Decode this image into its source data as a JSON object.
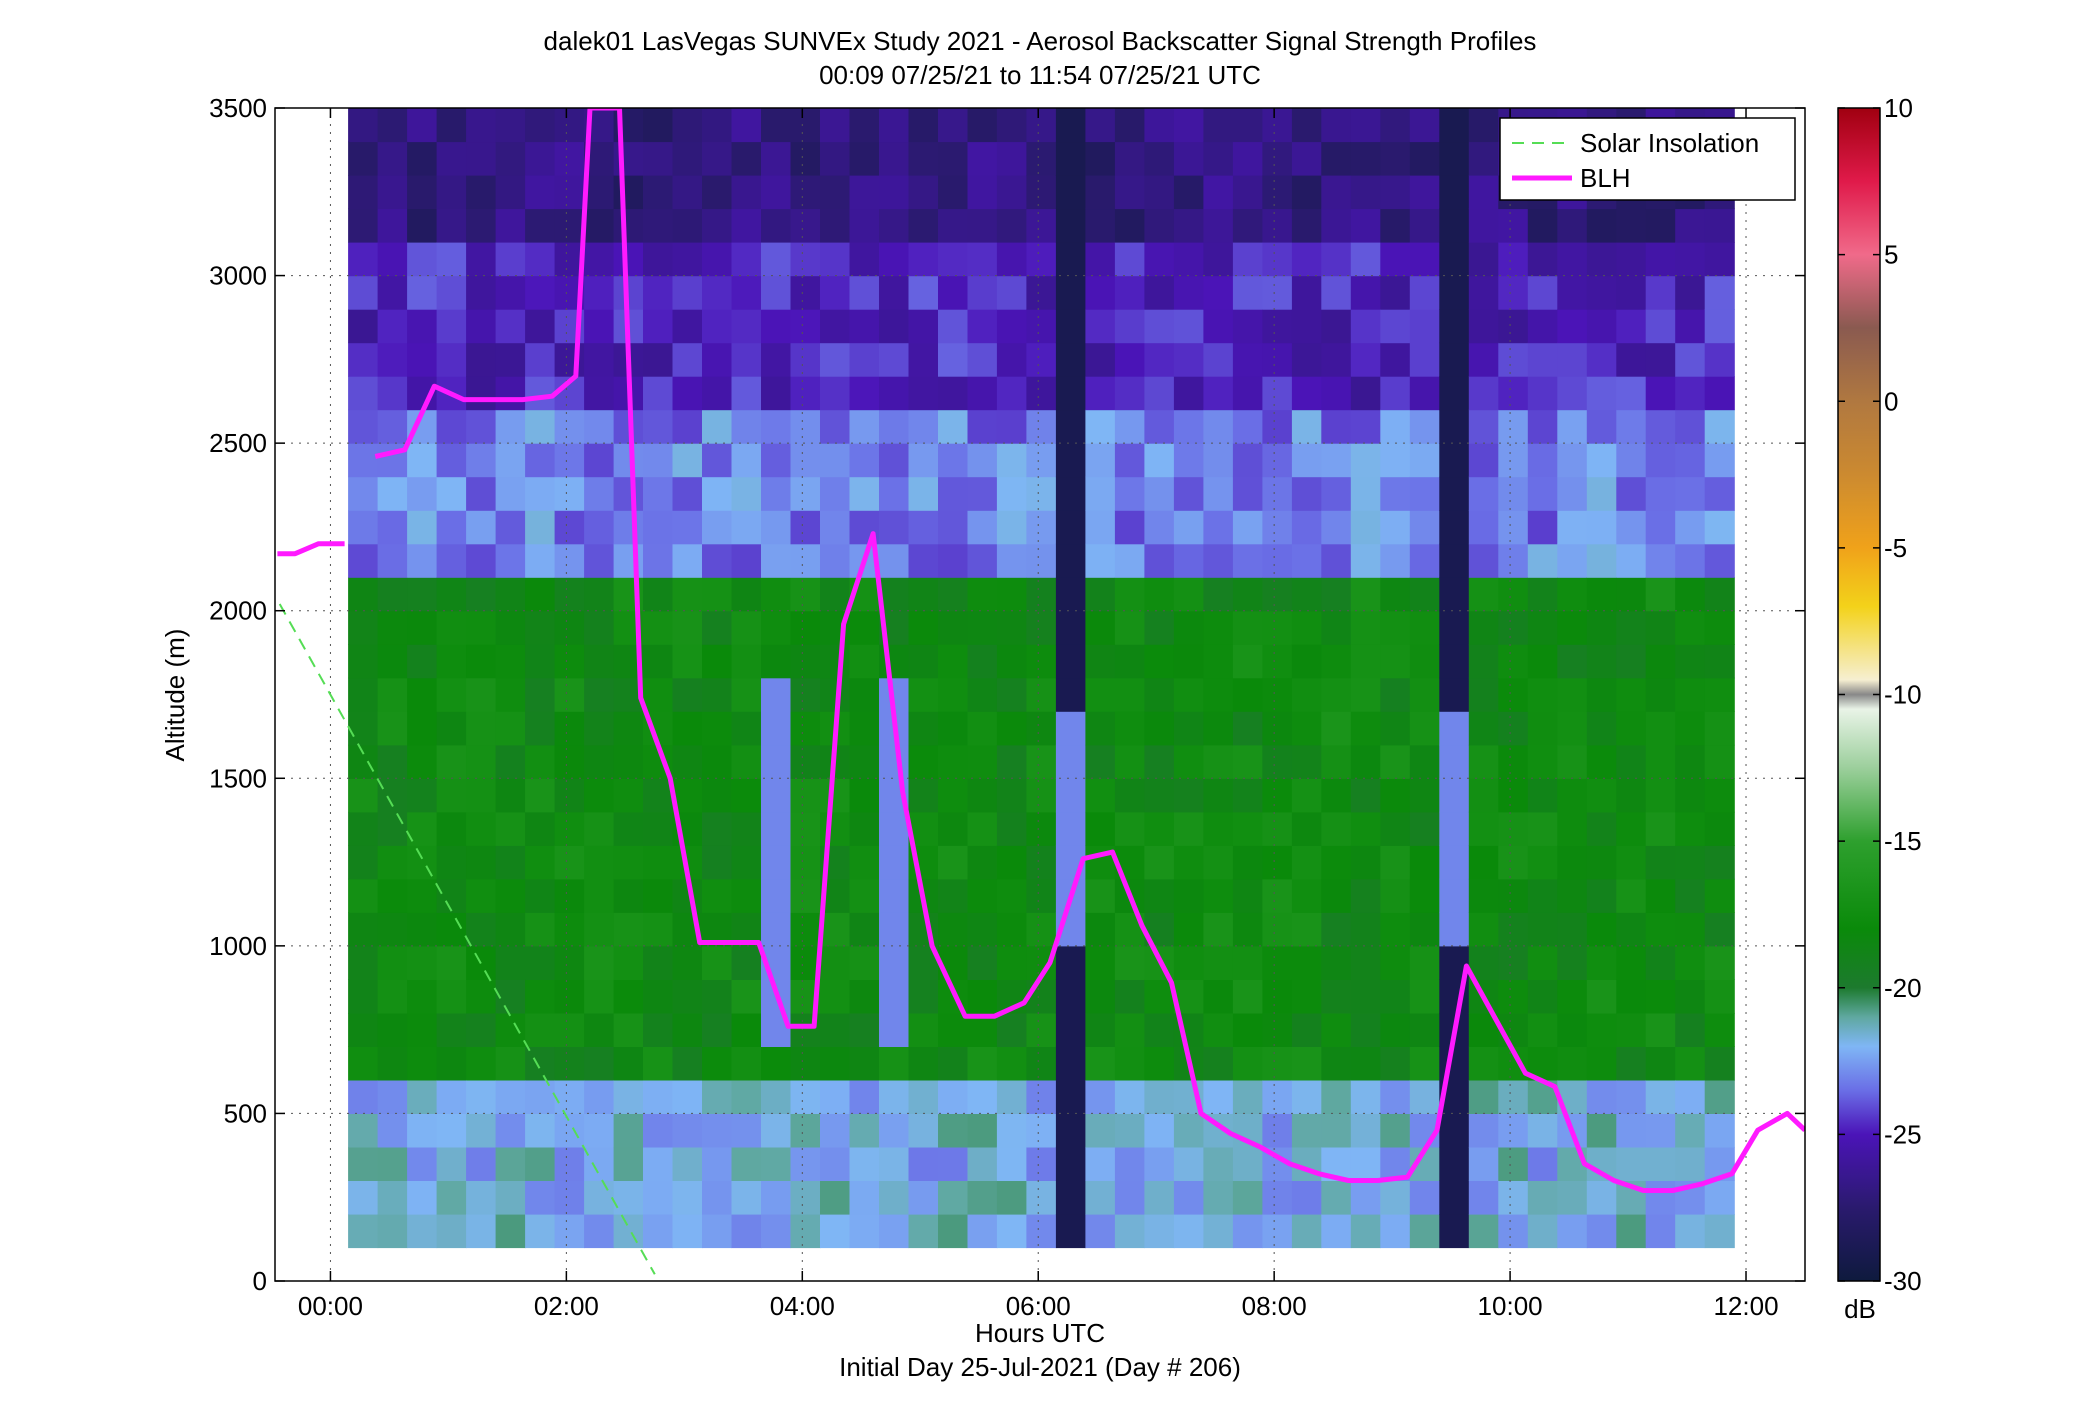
{
  "figure": {
    "title_line1": "dalek01 LasVegas SUNVEx Study 2021 - Aerosol Backscatter Signal Strength Profiles",
    "title_line2": "00:09 07/25/21 to 11:54 07/25/21  UTC"
  },
  "chart_data": {
    "type": "heatmap",
    "title": "dalek01 LasVegas SUNVEx Study 2021 - Aerosol Backscatter Signal Strength Profiles",
    "subtitle": "00:09 07/25/21 to 11:54 07/25/21  UTC",
    "xlabel": "Hours UTC",
    "xlabel_line2": "Initial Day 25-Jul-2021 (Day # 206)",
    "ylabel": "Altitude (m)",
    "xlim": [
      -0.47,
      12.5
    ],
    "ylim": [
      0,
      3500
    ],
    "x_ticks": [
      0,
      2,
      4,
      6,
      8,
      10,
      12
    ],
    "x_tick_labels": [
      "00:00",
      "02:00",
      "04:00",
      "06:00",
      "08:00",
      "10:00",
      "12:00"
    ],
    "y_ticks": [
      0,
      500,
      1000,
      1500,
      2000,
      2500,
      3000,
      3500
    ],
    "y_tick_labels": [
      "0",
      "500",
      "1000",
      "1500",
      "2000",
      "2500",
      "3000",
      "3500"
    ],
    "grid": true,
    "legend_position": "top-right",
    "colorbar": {
      "unit_label": "dB",
      "min": -30,
      "max": 10,
      "ticks": [
        10,
        5,
        0,
        -5,
        -10,
        -15,
        -20,
        -25,
        -30
      ],
      "tick_labels": [
        "10",
        "5",
        "0",
        "-5",
        "-10",
        "-15",
        "-20",
        "-25",
        "-30"
      ]
    },
    "heatmap": {
      "time_start_hours": 0.15,
      "time_end_hours": 11.9,
      "altitude_min_m": 100,
      "altitude_max_m": 3500,
      "typical_profile_db": {
        "above_3000m": -27,
        "2500_to_3000m": -25,
        "2000_to_2500m": -23,
        "500_to_2000m": -18,
        "below_500m": -22
      },
      "clear_columns_hours": [
        {
          "start": 6.17,
          "end": 6.42,
          "db": -29
        },
        {
          "start": 9.42,
          "end": 9.67,
          "db": -29
        }
      ],
      "low_signal_columns_hours": [
        {
          "start": 4.67,
          "end": 4.92,
          "db": -23
        },
        {
          "start": 3.67,
          "end": 3.92,
          "db": -23
        }
      ]
    },
    "series": [
      {
        "name": "Solar Insolation",
        "style": "dashed",
        "color": "#55dd55",
        "x": [
          -0.43,
          2.75
        ],
        "y": [
          2020,
          20
        ]
      },
      {
        "name": "BLH",
        "style": "solid",
        "color": "#ff1aff",
        "x": [
          -0.45,
          -0.3,
          -0.1,
          0.12,
          null,
          0.38,
          0.63,
          0.88,
          1.13,
          1.38,
          1.63,
          1.88,
          2.08,
          2.2,
          2.35,
          2.45,
          2.63,
          2.88,
          3.13,
          3.38,
          3.63,
          3.88,
          4.1,
          4.35,
          4.6,
          4.85,
          5.1,
          5.38,
          5.63,
          5.88,
          6.1,
          6.38,
          6.63,
          6.88,
          7.13,
          7.38,
          7.63,
          7.88,
          8.13,
          8.38,
          8.63,
          8.88,
          9.13,
          9.38,
          9.63,
          9.88,
          10.13,
          10.38,
          10.63,
          10.88,
          11.13,
          11.38,
          11.63,
          11.88,
          12.1,
          12.35,
          12.5
        ],
        "y": [
          2170,
          2170,
          2200,
          2200,
          null,
          2460,
          2480,
          2670,
          2630,
          2630,
          2630,
          2640,
          2700,
          3500,
          3500,
          3500,
          1740,
          1500,
          1010,
          1010,
          1010,
          760,
          760,
          1960,
          2230,
          1460,
          1000,
          790,
          790,
          830,
          950,
          1260,
          1280,
          1060,
          890,
          500,
          440,
          400,
          350,
          320,
          300,
          300,
          310,
          450,
          940,
          780,
          620,
          580,
          350,
          300,
          270,
          270,
          290,
          320,
          450,
          500,
          450
        ]
      }
    ]
  }
}
